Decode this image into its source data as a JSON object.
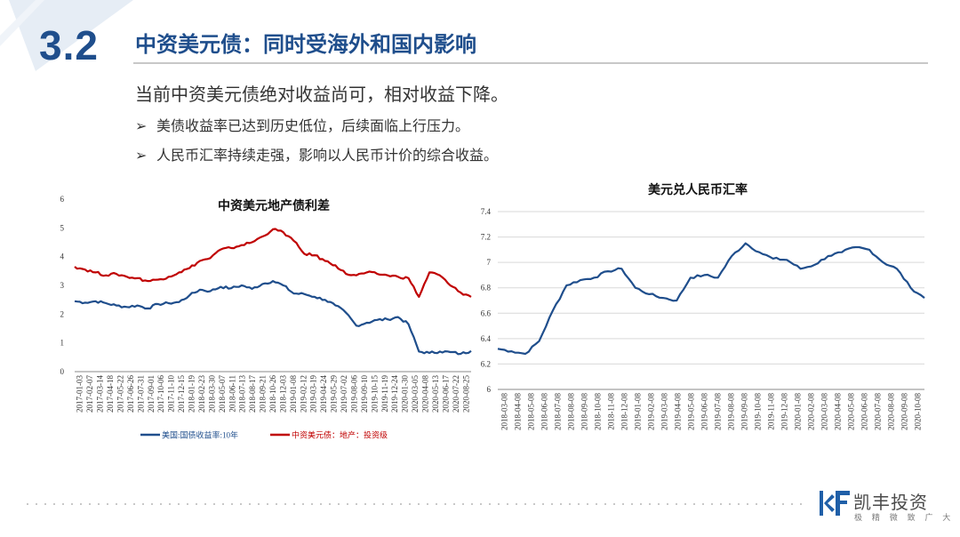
{
  "header": {
    "section_number": "3.2",
    "title": "中资美元债：同时受海外和国内影响"
  },
  "content": {
    "lead": "当前中资美元债绝对收益尚可，相对收益下降。",
    "bullets": [
      "美债收益率已达到历史低位，后续面临上行压力。",
      "人民币汇率持续走强，影响以人民币计价的综合收益。"
    ],
    "bullet_mark": "➢"
  },
  "brand": {
    "name": "凯丰投资",
    "slogan": "极 精 微 致 广 大",
    "color": "#1f5fa8"
  },
  "colors": {
    "accent": "#1f4e8c",
    "treasury": "#1f4e8c",
    "china_bond": "#c00000",
    "usdcny": "#1f4e8c"
  },
  "chart_data": [
    {
      "type": "line",
      "title": "中资美元地产债利差",
      "ylim": [
        0,
        6
      ],
      "yticks": [
        "0",
        "1",
        "2",
        "3",
        "4",
        "5",
        "6"
      ],
      "x_tick_labels": [
        "2017-01-03",
        "2017-02-07",
        "2017-03-14",
        "2017-04-18",
        "2017-05-22",
        "2017-06-26",
        "2017-07-31",
        "2017-09-01",
        "2017-10-06",
        "2017-11-10",
        "2017-12-15",
        "2018-01-19",
        "2018-02-23",
        "2018-03-30",
        "2018-05-07",
        "2018-06-11",
        "2018-07-13",
        "2018-08-17",
        "2018-09-21",
        "2018-10-26",
        "2018-12-03",
        "2019-01-08",
        "2019-02-12",
        "2019-03-19",
        "2019-04-24",
        "2019-05-29",
        "2019-07-02",
        "2019-08-06",
        "2019-09-10",
        "2019-10-15",
        "2019-11-19",
        "2019-12-24",
        "2020-01-30",
        "2020-03-05",
        "2020-04-08",
        "2020-05-13",
        "2020-06-17",
        "2020-07-22",
        "2020-08-25"
      ],
      "legend_position": "bottom",
      "grid": false,
      "series": [
        {
          "name": "美国:国债收益率:10年",
          "values": [
            2.45,
            2.4,
            2.45,
            2.38,
            2.3,
            2.25,
            2.3,
            2.2,
            2.35,
            2.38,
            2.42,
            2.65,
            2.85,
            2.8,
            2.95,
            2.9,
            3.0,
            2.88,
            3.05,
            3.15,
            3.0,
            2.72,
            2.7,
            2.6,
            2.5,
            2.3,
            2.05,
            1.6,
            1.7,
            1.8,
            1.82,
            1.9,
            1.65,
            0.7,
            0.65,
            0.7,
            0.68,
            0.62,
            0.72
          ]
        },
        {
          "name": "中资美元债：地产：投资级",
          "values": [
            3.65,
            3.55,
            3.45,
            3.35,
            3.4,
            3.3,
            3.25,
            3.15,
            3.2,
            3.3,
            3.45,
            3.6,
            3.85,
            3.95,
            4.25,
            4.3,
            4.4,
            4.5,
            4.7,
            4.95,
            4.85,
            4.55,
            4.1,
            4.05,
            3.85,
            3.7,
            3.4,
            3.35,
            3.45,
            3.4,
            3.35,
            3.3,
            3.25,
            2.6,
            3.45,
            3.35,
            3.0,
            2.75,
            2.6
          ]
        }
      ]
    },
    {
      "type": "line",
      "title": "美元兑人民币汇率",
      "ylim": [
        6,
        7.4
      ],
      "yticks": [
        "6",
        "6.2",
        "6.4",
        "6.6",
        "6.8",
        "7",
        "7.2",
        "7.4"
      ],
      "x_tick_labels": [
        "2018-03-08",
        "2018-04-08",
        "2018-05-08",
        "2018-06-08",
        "2018-07-08",
        "2018-08-08",
        "2018-09-08",
        "2018-10-08",
        "2018-11-08",
        "2018-12-08",
        "2019-01-08",
        "2019-02-08",
        "2019-03-08",
        "2019-04-08",
        "2019-05-08",
        "2019-06-08",
        "2019-07-08",
        "2019-08-08",
        "2019-09-08",
        "2019-10-08",
        "2019-11-08",
        "2019-12-08",
        "2020-01-08",
        "2020-02-08",
        "2020-03-08",
        "2020-04-08",
        "2020-05-08",
        "2020-06-08",
        "2020-07-08",
        "2020-08-08",
        "2020-09-08",
        "2020-10-08"
      ],
      "legend_position": "none",
      "grid": true,
      "series": [
        {
          "name": "",
          "values": [
            6.32,
            6.3,
            6.28,
            6.38,
            6.62,
            6.82,
            6.86,
            6.88,
            6.93,
            6.95,
            6.8,
            6.75,
            6.72,
            6.7,
            6.88,
            6.9,
            6.88,
            7.05,
            7.15,
            7.08,
            7.03,
            7.02,
            6.95,
            6.98,
            7.05,
            7.08,
            7.12,
            7.1,
            7.0,
            6.95,
            6.8,
            6.72
          ]
        }
      ]
    }
  ]
}
